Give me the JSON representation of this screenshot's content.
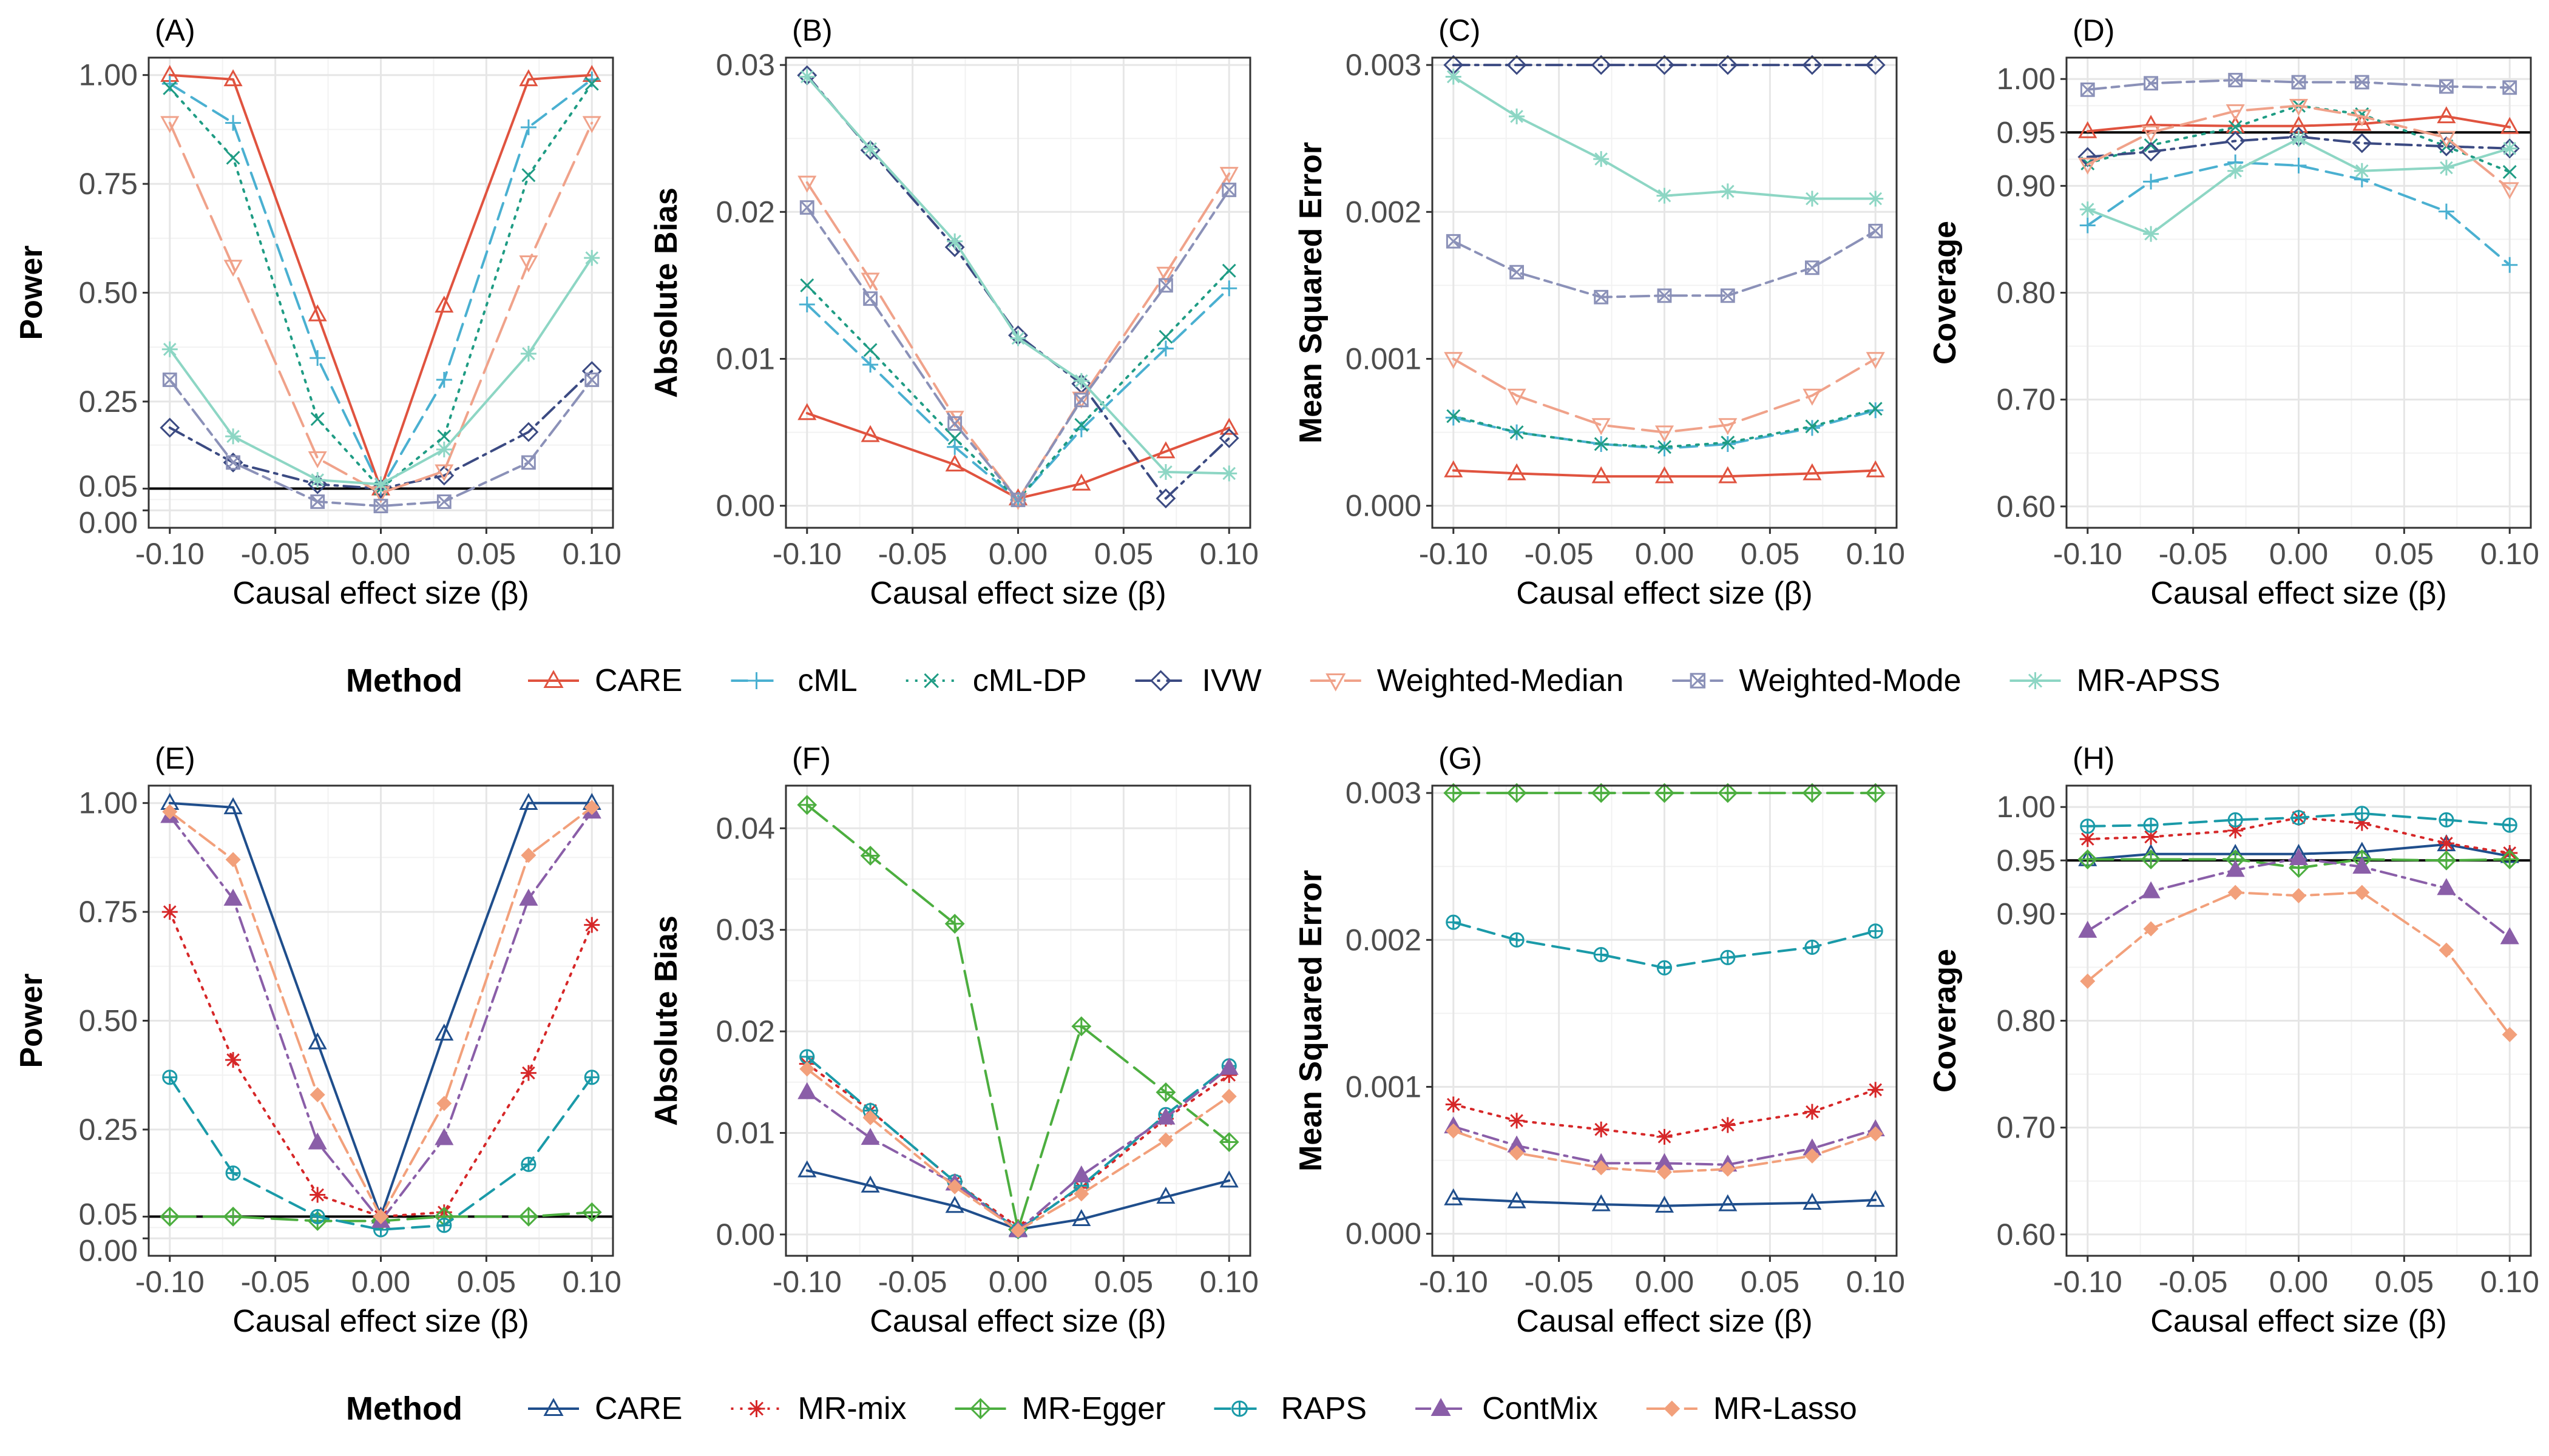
{
  "legends": [
    {
      "title": "Method",
      "entries": [
        {
          "name": "CARE",
          "color": "#e0533f",
          "marker": "triangle",
          "dash": "solid"
        },
        {
          "name": "cML",
          "color": "#4ab0d1",
          "marker": "plus",
          "dash": "dash"
        },
        {
          "name": "cML-DP",
          "color": "#1f9c84",
          "marker": "cross",
          "dash": "dot"
        },
        {
          "name": "IVW",
          "color": "#3b4a82",
          "marker": "diamond",
          "dash": "dashdot"
        },
        {
          "name": "Weighted-Median",
          "color": "#f0a28a",
          "marker": "tridown",
          "dash": "longdash"
        },
        {
          "name": "Weighted-Mode",
          "color": "#8b91b8",
          "marker": "boxx",
          "dash": "twodash"
        },
        {
          "name": "MR-APSS",
          "color": "#8dd6c4",
          "marker": "asterisk",
          "dash": "solid"
        }
      ]
    },
    {
      "title": "Method",
      "entries": [
        {
          "name": "CARE",
          "color": "#1f4e8c",
          "marker": "triangle",
          "dash": "solid"
        },
        {
          "name": "MR-mix",
          "color": "#d62728",
          "marker": "asterisk",
          "dash": "dot"
        },
        {
          "name": "MR-Egger",
          "color": "#4cae3f",
          "marker": "diamondplus",
          "dash": "longdash"
        },
        {
          "name": "RAPS",
          "color": "#1a9aa8",
          "marker": "circleplus",
          "dash": "dash"
        },
        {
          "name": "ContMix",
          "color": "#8a5ea8",
          "marker": "filltriangle",
          "dash": "dashdot"
        },
        {
          "name": "MR-Lasso",
          "color": "#f2a07b",
          "marker": "filldiamond",
          "dash": "twodash"
        }
      ]
    }
  ],
  "chart_data": [
    {
      "type": "line",
      "panel_label": "(A)",
      "xlabel": "Causal effect size (β)",
      "ylabel": "Power",
      "xlim": [
        -0.11,
        0.11
      ],
      "ylim": [
        -0.04,
        1.04
      ],
      "x": [
        -0.1,
        -0.07,
        -0.03,
        0,
        0.03,
        0.07,
        0.1
      ],
      "xticks": [
        "-0.10",
        "-0.05",
        "0.00",
        "0.05",
        "0.10"
      ],
      "xtick_values": [
        -0.1,
        -0.05,
        0,
        0.05,
        0.1
      ],
      "yticks": [
        "0.00",
        "0.05",
        "0.25",
        "0.50",
        "0.75",
        "1.00"
      ],
      "ytick_values": [
        0,
        0.05,
        0.25,
        0.5,
        0.75,
        1
      ],
      "hline": 0.05,
      "legend": 0,
      "series": [
        {
          "name": "CARE",
          "values": [
            1.0,
            0.99,
            0.45,
            0.05,
            0.47,
            0.99,
            1.0
          ]
        },
        {
          "name": "cML",
          "values": [
            0.98,
            0.89,
            0.35,
            0.05,
            0.3,
            0.88,
            0.99
          ]
        },
        {
          "name": "cML-DP",
          "values": [
            0.97,
            0.81,
            0.21,
            0.05,
            0.17,
            0.77,
            0.98
          ]
        },
        {
          "name": "IVW",
          "values": [
            0.19,
            0.11,
            0.06,
            0.05,
            0.08,
            0.18,
            0.32
          ]
        },
        {
          "name": "Weighted-Median",
          "values": [
            0.89,
            0.56,
            0.12,
            0.04,
            0.09,
            0.57,
            0.89
          ]
        },
        {
          "name": "Weighted-Mode",
          "values": [
            0.3,
            0.11,
            0.02,
            0.01,
            0.02,
            0.11,
            0.3
          ]
        },
        {
          "name": "MR-APSS",
          "values": [
            0.37,
            0.17,
            0.07,
            0.06,
            0.14,
            0.36,
            0.58
          ]
        }
      ]
    },
    {
      "type": "line",
      "panel_label": "(B)",
      "xlabel": "Causal effect size (β)",
      "ylabel": "Absolute Bias",
      "xlim": [
        -0.11,
        0.11
      ],
      "ylim": [
        -0.0015,
        0.0305
      ],
      "x": [
        -0.1,
        -0.07,
        -0.03,
        0,
        0.03,
        0.07,
        0.1
      ],
      "xticks": [
        "-0.10",
        "-0.05",
        "0.00",
        "0.05",
        "0.10"
      ],
      "xtick_values": [
        -0.1,
        -0.05,
        0,
        0.05,
        0.1
      ],
      "yticks": [
        "0.00",
        "0.01",
        "0.02",
        "0.03"
      ],
      "ytick_values": [
        0,
        0.01,
        0.02,
        0.03
      ],
      "legend": 0,
      "series": [
        {
          "name": "CARE",
          "values": [
            0.0063,
            0.0048,
            0.0028,
            0.0005,
            0.0015,
            0.0037,
            0.0053
          ]
        },
        {
          "name": "cML",
          "values": [
            0.0137,
            0.0096,
            0.004,
            0.0004,
            0.0052,
            0.0107,
            0.0148
          ]
        },
        {
          "name": "cML-DP",
          "values": [
            0.015,
            0.0106,
            0.0046,
            0.0004,
            0.0055,
            0.0115,
            0.016
          ]
        },
        {
          "name": "IVW",
          "values": [
            0.0293,
            0.0242,
            0.0176,
            0.0116,
            0.0083,
            0.0005,
            0.0046
          ]
        },
        {
          "name": "Weighted-Median",
          "values": [
            0.022,
            0.0154,
            0.006,
            0.0004,
            0.0073,
            0.0158,
            0.0226
          ]
        },
        {
          "name": "Weighted-Mode",
          "values": [
            0.0203,
            0.0141,
            0.0056,
            0.0004,
            0.0072,
            0.015,
            0.0215
          ]
        },
        {
          "name": "MR-APSS",
          "values": [
            0.0292,
            0.0243,
            0.018,
            0.0114,
            0.0085,
            0.0023,
            0.0022
          ]
        }
      ]
    },
    {
      "type": "line",
      "panel_label": "(C)",
      "xlabel": "Causal effect size (β)",
      "ylabel": "Mean Squared Error",
      "xlim": [
        -0.11,
        0.11
      ],
      "ylim": [
        -0.00015,
        0.00305
      ],
      "x": [
        -0.1,
        -0.07,
        -0.03,
        0,
        0.03,
        0.07,
        0.1
      ],
      "xticks": [
        "-0.10",
        "-0.05",
        "0.00",
        "0.05",
        "0.10"
      ],
      "xtick_values": [
        -0.1,
        -0.05,
        0,
        0.05,
        0.1
      ],
      "yticks": [
        "0.000",
        "0.001",
        "0.002",
        "0.003"
      ],
      "ytick_values": [
        0,
        0.001,
        0.002,
        0.003
      ],
      "legend": 0,
      "series": [
        {
          "name": "CARE",
          "values": [
            0.00024,
            0.00022,
            0.0002,
            0.0002,
            0.0002,
            0.00022,
            0.00024
          ]
        },
        {
          "name": "cML",
          "values": [
            0.0006,
            0.0005,
            0.00042,
            0.00039,
            0.00042,
            0.00053,
            0.00065
          ]
        },
        {
          "name": "cML-DP",
          "values": [
            0.00061,
            0.0005,
            0.00042,
            0.0004,
            0.00043,
            0.00054,
            0.00066
          ]
        },
        {
          "name": "IVW",
          "values": [
            0.003,
            0.003,
            0.003,
            0.003,
            0.003,
            0.003,
            0.003
          ]
        },
        {
          "name": "Weighted-Median",
          "values": [
            0.001,
            0.00075,
            0.00055,
            0.0005,
            0.00055,
            0.00075,
            0.001
          ]
        },
        {
          "name": "Weighted-Mode",
          "values": [
            0.0018,
            0.00159,
            0.00142,
            0.00143,
            0.00143,
            0.00162,
            0.00187
          ]
        },
        {
          "name": "MR-APSS",
          "values": [
            0.00292,
            0.00265,
            0.00236,
            0.00211,
            0.00214,
            0.00209,
            0.00209
          ]
        }
      ]
    },
    {
      "type": "line",
      "panel_label": "(D)",
      "xlabel": "Causal effect size (β)",
      "ylabel": "Coverage",
      "xlim": [
        -0.11,
        0.11
      ],
      "ylim": [
        0.58,
        1.02
      ],
      "x": [
        -0.1,
        -0.07,
        -0.03,
        0,
        0.03,
        0.07,
        0.1
      ],
      "xticks": [
        "-0.10",
        "-0.05",
        "0.00",
        "0.05",
        "0.10"
      ],
      "xtick_values": [
        -0.1,
        -0.05,
        0,
        0.05,
        0.1
      ],
      "yticks": [
        "0.60",
        "0.70",
        "0.80",
        "0.90",
        "0.95",
        "1.00"
      ],
      "ytick_values": [
        0.6,
        0.7,
        0.8,
        0.9,
        0.95,
        1.0
      ],
      "hline": 0.95,
      "legend": 0,
      "series": [
        {
          "name": "CARE",
          "values": [
            0.951,
            0.957,
            0.956,
            0.956,
            0.958,
            0.965,
            0.955
          ]
        },
        {
          "name": "cML",
          "values": [
            0.863,
            0.904,
            0.922,
            0.919,
            0.906,
            0.876,
            0.826
          ]
        },
        {
          "name": "cML-DP",
          "values": [
            0.921,
            0.938,
            0.955,
            0.975,
            0.967,
            0.937,
            0.913
          ]
        },
        {
          "name": "IVW",
          "values": [
            0.927,
            0.932,
            0.942,
            0.946,
            0.94,
            0.937,
            0.935
          ]
        },
        {
          "name": "Weighted-Median",
          "values": [
            0.92,
            0.95,
            0.97,
            0.975,
            0.965,
            0.945,
            0.897
          ]
        },
        {
          "name": "Weighted-Mode",
          "values": [
            0.99,
            0.996,
            0.999,
            0.997,
            0.997,
            0.993,
            0.992
          ]
        },
        {
          "name": "MR-APSS",
          "values": [
            0.878,
            0.855,
            0.914,
            0.944,
            0.914,
            0.917,
            0.935
          ]
        }
      ]
    },
    {
      "type": "line",
      "panel_label": "(E)",
      "xlabel": "Causal effect size (β)",
      "ylabel": "Power",
      "xlim": [
        -0.11,
        0.11
      ],
      "ylim": [
        -0.04,
        1.04
      ],
      "x": [
        -0.1,
        -0.07,
        -0.03,
        0,
        0.03,
        0.07,
        0.1
      ],
      "xticks": [
        "-0.10",
        "-0.05",
        "0.00",
        "0.05",
        "0.10"
      ],
      "xtick_values": [
        -0.1,
        -0.05,
        0,
        0.05,
        0.1
      ],
      "yticks": [
        "0.00",
        "0.05",
        "0.25",
        "0.50",
        "0.75",
        "1.00"
      ],
      "ytick_values": [
        0,
        0.05,
        0.25,
        0.5,
        0.75,
        1
      ],
      "hline": 0.05,
      "legend": 1,
      "series": [
        {
          "name": "CARE",
          "values": [
            1.0,
            0.99,
            0.45,
            0.05,
            0.47,
            1.0,
            1.0
          ]
        },
        {
          "name": "MR-mix",
          "values": [
            0.75,
            0.41,
            0.1,
            0.05,
            0.06,
            0.38,
            0.72
          ]
        },
        {
          "name": "MR-Egger",
          "values": [
            0.05,
            0.05,
            0.04,
            0.04,
            0.05,
            0.05,
            0.06
          ]
        },
        {
          "name": "RAPS",
          "values": [
            0.37,
            0.15,
            0.05,
            0.02,
            0.03,
            0.17,
            0.37
          ]
        },
        {
          "name": "ContMix",
          "values": [
            0.97,
            0.78,
            0.22,
            0.04,
            0.23,
            0.78,
            0.98
          ]
        },
        {
          "name": "MR-Lasso",
          "values": [
            0.98,
            0.87,
            0.33,
            0.05,
            0.31,
            0.88,
            0.99
          ]
        }
      ]
    },
    {
      "type": "line",
      "panel_label": "(F)",
      "xlabel": "Causal effect size (β)",
      "ylabel": "Absolute Bias",
      "xlim": [
        -0.11,
        0.11
      ],
      "ylim": [
        -0.0021,
        0.0442
      ],
      "x": [
        -0.1,
        -0.07,
        -0.03,
        0,
        0.03,
        0.07,
        0.1
      ],
      "xticks": [
        "-0.10",
        "-0.05",
        "0.00",
        "0.05",
        "0.10"
      ],
      "xtick_values": [
        -0.1,
        -0.05,
        0,
        0.05,
        0.1
      ],
      "yticks": [
        "0.00",
        "0.01",
        "0.02",
        "0.03",
        "0.04"
      ],
      "ytick_values": [
        0,
        0.01,
        0.02,
        0.03,
        0.04
      ],
      "legend": 1,
      "series": [
        {
          "name": "CARE",
          "values": [
            0.0063,
            0.0048,
            0.0028,
            0.0005,
            0.0015,
            0.0037,
            0.0053
          ]
        },
        {
          "name": "MR-mix",
          "values": [
            0.0168,
            0.0122,
            0.0052,
            0.0007,
            0.0046,
            0.0114,
            0.0157
          ]
        },
        {
          "name": "MR-Egger",
          "values": [
            0.0423,
            0.0373,
            0.0306,
            0.0005,
            0.0205,
            0.014,
            0.0091
          ]
        },
        {
          "name": "RAPS",
          "values": [
            0.0175,
            0.0122,
            0.0052,
            0.0004,
            0.0048,
            0.0118,
            0.0166
          ]
        },
        {
          "name": "ContMix",
          "values": [
            0.014,
            0.0095,
            0.005,
            0.0004,
            0.0058,
            0.0115,
            0.0164
          ]
        },
        {
          "name": "MR-Lasso",
          "values": [
            0.0163,
            0.0115,
            0.0047,
            0.0004,
            0.004,
            0.0093,
            0.0136
          ]
        }
      ]
    },
    {
      "type": "line",
      "panel_label": "(G)",
      "xlabel": "Causal effect size (β)",
      "ylabel": "Mean Squared Error",
      "xlim": [
        -0.11,
        0.11
      ],
      "ylim": [
        -0.00015,
        0.00305
      ],
      "x": [
        -0.1,
        -0.07,
        -0.03,
        0,
        0.03,
        0.07,
        0.1
      ],
      "xticks": [
        "-0.10",
        "-0.05",
        "0.00",
        "0.05",
        "0.10"
      ],
      "xtick_values": [
        -0.1,
        -0.05,
        0,
        0.05,
        0.1
      ],
      "yticks": [
        "0.000",
        "0.001",
        "0.002",
        "0.003"
      ],
      "ytick_values": [
        0,
        0.001,
        0.002,
        0.003
      ],
      "legend": 1,
      "series": [
        {
          "name": "CARE",
          "values": [
            0.00024,
            0.00022,
            0.0002,
            0.00019,
            0.0002,
            0.00021,
            0.00023
          ]
        },
        {
          "name": "MR-mix",
          "values": [
            0.00088,
            0.00077,
            0.00071,
            0.00066,
            0.00074,
            0.00083,
            0.00098
          ]
        },
        {
          "name": "MR-Egger",
          "values": [
            0.003,
            0.003,
            0.003,
            0.003,
            0.003,
            0.003,
            0.003
          ]
        },
        {
          "name": "RAPS",
          "values": [
            0.00212,
            0.002,
            0.0019,
            0.00181,
            0.00188,
            0.00195,
            0.00206
          ]
        },
        {
          "name": "ContMix",
          "values": [
            0.00073,
            0.0006,
            0.00048,
            0.00048,
            0.00047,
            0.00058,
            0.00071
          ]
        },
        {
          "name": "MR-Lasso",
          "values": [
            0.0007,
            0.00055,
            0.00045,
            0.00042,
            0.00044,
            0.00053,
            0.00068
          ]
        }
      ]
    },
    {
      "type": "line",
      "panel_label": "(H)",
      "xlabel": "Causal effect size (β)",
      "ylabel": "Coverage",
      "xlim": [
        -0.11,
        0.11
      ],
      "ylim": [
        0.58,
        1.02
      ],
      "x": [
        -0.1,
        -0.07,
        -0.03,
        0,
        0.03,
        0.07,
        0.1
      ],
      "xticks": [
        "-0.10",
        "-0.05",
        "0.00",
        "0.05",
        "0.10"
      ],
      "xtick_values": [
        -0.1,
        -0.05,
        0,
        0.05,
        0.1
      ],
      "yticks": [
        "0.60",
        "0.70",
        "0.80",
        "0.90",
        "0.95",
        "1.00"
      ],
      "ytick_values": [
        0.6,
        0.7,
        0.8,
        0.9,
        0.95,
        1.0
      ],
      "hline": 0.95,
      "legend": 1,
      "series": [
        {
          "name": "CARE",
          "values": [
            0.951,
            0.956,
            0.956,
            0.956,
            0.958,
            0.965,
            0.954
          ]
        },
        {
          "name": "MR-mix",
          "values": [
            0.97,
            0.972,
            0.978,
            0.99,
            0.985,
            0.966,
            0.957
          ]
        },
        {
          "name": "MR-Egger",
          "values": [
            0.951,
            0.951,
            0.951,
            0.943,
            0.951,
            0.95,
            0.951
          ]
        },
        {
          "name": "RAPS",
          "values": [
            0.982,
            0.983,
            0.988,
            0.99,
            0.994,
            0.988,
            0.983
          ]
        },
        {
          "name": "ContMix",
          "values": [
            0.884,
            0.921,
            0.941,
            0.952,
            0.944,
            0.924,
            0.878
          ]
        },
        {
          "name": "MR-Lasso",
          "values": [
            0.837,
            0.886,
            0.92,
            0.917,
            0.92,
            0.866,
            0.787
          ]
        }
      ]
    }
  ]
}
